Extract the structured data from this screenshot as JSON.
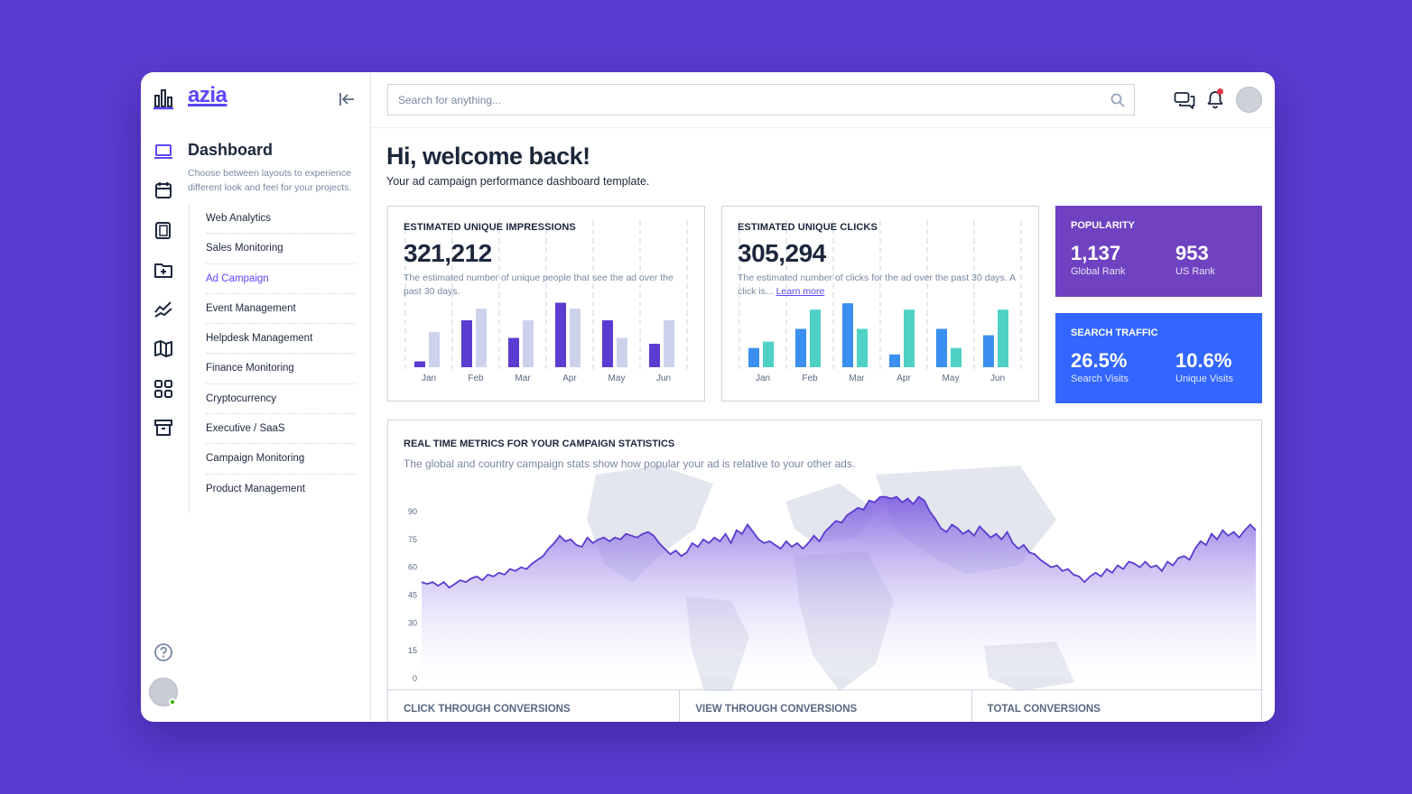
{
  "brand": {
    "name": "azia"
  },
  "sidebar": {
    "title": "Dashboard",
    "description": "Choose between layouts to experience different look and feel for your projects.",
    "items": [
      {
        "label": "Web Analytics",
        "active": false
      },
      {
        "label": "Sales Monitoring",
        "active": false
      },
      {
        "label": "Ad Campaign",
        "active": true
      },
      {
        "label": "Event Management",
        "active": false
      },
      {
        "label": "Helpdesk Management",
        "active": false
      },
      {
        "label": "Finance Monitoring",
        "active": false
      },
      {
        "label": "Cryptocurrency",
        "active": false
      },
      {
        "label": "Executive / SaaS",
        "active": false
      },
      {
        "label": "Campaign Monitoring",
        "active": false
      },
      {
        "label": "Product Management",
        "active": false
      }
    ],
    "rail_icons": [
      "laptop-icon",
      "calendar-icon",
      "pages-icon",
      "folder-plus-icon",
      "chart-line-icon",
      "map-icon",
      "grid-icon",
      "archive-icon"
    ]
  },
  "search": {
    "placeholder": "Search for anything..."
  },
  "greeting": {
    "title": "Hi, welcome back!",
    "subtitle": "Your ad campaign performance dashboard template."
  },
  "impressions": {
    "title": "Estimated Unique Impressions",
    "value": "321,212",
    "description": "The estimated number of unique people that see the ad over the past 30 days."
  },
  "clicks": {
    "title": "Estimated Unique Clicks",
    "value": "305,294",
    "description": "The estimated number of clicks for the ad over the past 30 days. A click is...",
    "link": "Learn more"
  },
  "popularity": {
    "title": "Popularity",
    "global_value": "1,137",
    "global_label": "Global Rank",
    "us_value": "953",
    "us_label": "US Rank"
  },
  "search_traffic": {
    "title": "Search Traffic",
    "search_value": "26.5%",
    "search_label": "Search Visits",
    "unique_value": "10.6%",
    "unique_label": "Unique Visits"
  },
  "realtime": {
    "title": "Real Time Metrics for your Campaign Statistics",
    "description": "The global and country campaign stats show how popular your ad is relative to your other ads."
  },
  "footer": {
    "click_through": "Click Through Conversions",
    "view_through": "View Through Conversions",
    "total": "Total Conversions"
  },
  "colors": {
    "background": "#5b3cd1",
    "accent": "#5b47fb",
    "bar_dark": "#5b3cd1",
    "bar_light": "#cdd2ec",
    "bar_blue": "#3b8ff0",
    "bar_teal": "#4fd1c5",
    "popularity_tile": "#6f42c1",
    "traffic_tile": "#3366ff"
  },
  "chart_data": [
    {
      "type": "bar",
      "title": "",
      "categories": [
        "Jan",
        "Feb",
        "Mar",
        "Apr",
        "May",
        "Jun"
      ],
      "series": [
        {
          "values": [
            1,
            8,
            5,
            11,
            8,
            4
          ],
          "color": "#5b3cd1"
        },
        {
          "values": [
            6,
            10,
            8,
            10,
            5,
            8
          ],
          "color": "#cdd2ec"
        }
      ],
      "ylim": [
        0,
        12
      ]
    },
    {
      "type": "bar",
      "title": "",
      "categories": [
        "Jan",
        "Feb",
        "Mar",
        "Apr",
        "May",
        "Jun"
      ],
      "series": [
        {
          "values": [
            3,
            6,
            10,
            2,
            6,
            5
          ],
          "color": "#3b8ff0"
        },
        {
          "values": [
            4,
            9,
            6,
            9,
            3,
            9
          ],
          "color": "#4fd1c5"
        }
      ],
      "ylim": [
        0,
        11
      ]
    },
    {
      "type": "area",
      "title": "",
      "yticks": [
        0,
        15,
        30,
        45,
        60,
        75,
        90
      ],
      "ylim": [
        0,
        90
      ],
      "grid": false,
      "values": [
        52,
        51,
        52,
        50,
        52,
        49,
        51,
        53,
        52,
        54,
        55,
        53,
        56,
        55,
        57,
        56,
        59,
        58,
        60,
        59,
        62,
        64,
        66,
        70,
        73,
        77,
        74,
        75,
        72,
        71,
        76,
        73,
        75,
        76,
        74,
        76,
        75,
        78,
        77,
        76,
        78,
        79,
        77,
        73,
        70,
        67,
        69,
        66,
        68,
        73,
        71,
        75,
        73,
        76,
        74,
        78,
        73,
        80,
        78,
        83,
        79,
        75,
        73,
        74,
        72,
        70,
        74,
        71,
        73,
        70,
        73,
        77,
        74,
        79,
        82,
        85,
        84,
        88,
        90,
        92,
        91,
        96,
        95,
        98,
        98,
        97,
        98,
        95,
        97,
        94,
        98,
        96,
        90,
        86,
        81,
        79,
        83,
        81,
        78,
        80,
        77,
        82,
        79,
        76,
        78,
        75,
        79,
        73,
        70,
        72,
        68,
        67,
        64,
        62,
        60,
        61,
        58,
        59,
        56,
        55,
        52,
        55,
        57,
        55,
        59,
        57,
        61,
        59,
        63,
        62,
        60,
        63,
        60,
        61,
        58,
        63,
        61,
        65,
        66,
        64,
        70,
        74,
        72,
        78,
        75,
        80,
        77,
        79,
        76,
        80,
        83,
        80
      ]
    }
  ]
}
